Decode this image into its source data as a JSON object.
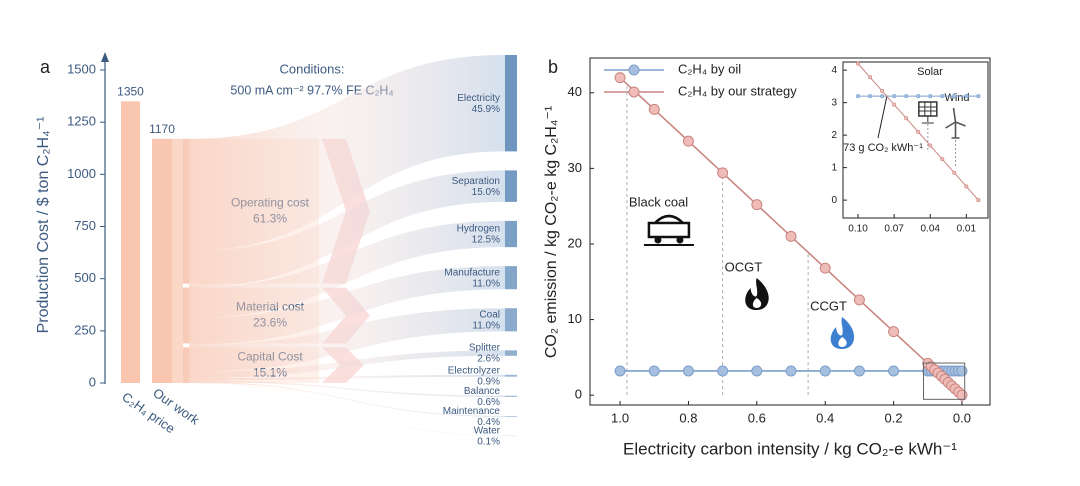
{
  "chart_data": [
    {
      "type": "sankey",
      "panel_label": "a",
      "ylabel": "Production Cost / $ ton C₂H₄⁻¹",
      "ylim": [
        0,
        1500
      ],
      "yticks": [
        0,
        250,
        500,
        750,
        1000,
        1250,
        1500
      ],
      "categories": [
        "C₂H₄ price",
        "Our work"
      ],
      "values": [
        1350,
        1170
      ],
      "color": "#f9c6b0",
      "conditions": [
        "Conditions:",
        "500 mA cm⁻²   97.7% FE C₂H₄"
      ],
      "groups": {
        "names": [
          "Operating cost",
          "Material cost",
          "Capital Cost"
        ],
        "values": [
          61.3,
          23.6,
          15.1
        ],
        "value_labels": [
          "61.3%",
          "23.6%",
          "15.1%"
        ],
        "color": "#f8cbb8"
      },
      "items": {
        "names": [
          "Electricity",
          "Separation",
          "Hydrogen",
          "Manufacture",
          "Coal",
          "Splitter",
          "Electrolyzer",
          "Balance",
          "Maintenance",
          "Water"
        ],
        "values": [
          45.9,
          15.0,
          12.5,
          11.0,
          11.0,
          2.6,
          0.9,
          0.6,
          0.4,
          0.1
        ],
        "value_labels": [
          "45.9%",
          "15.0%",
          "12.5%",
          "11.0%",
          "11.0%",
          "2.6%",
          "0.9%",
          "0.6%",
          "0.4%",
          "0.1%"
        ],
        "color": "#6f96bf"
      }
    },
    {
      "type": "line",
      "panel_label": "b",
      "xlabel": "Electricity carbon intensity / kg CO₂-e kWh⁻¹",
      "ylabel": "CO₂ emission / kg CO₂-e kg C₂H₄⁻¹",
      "x": [
        1.0,
        0.9,
        0.8,
        0.7,
        0.6,
        0.5,
        0.4,
        0.3,
        0.2,
        0.1,
        0.09,
        0.08,
        0.07,
        0.06,
        0.05,
        0.04,
        0.03,
        0.02,
        0.01,
        0.0
      ],
      "xlim": [
        1.088,
        -0.082
      ],
      "ylim": [
        -1.3,
        44.6
      ],
      "xticks": [
        {
          "value": 1,
          "label": "1.0"
        },
        0.8,
        0.6,
        0.4,
        0.2,
        {
          "value": 0,
          "label": "0.0"
        }
      ],
      "yticks": [
        0,
        10,
        20,
        30,
        40
      ],
      "legend": "upper left",
      "series": [
        {
          "name": "C₂H₄ by oil",
          "color": "#7b9fcb",
          "values": [
            3.2,
            3.2,
            3.2,
            3.2,
            3.2,
            3.2,
            3.2,
            3.2,
            3.2,
            3.2,
            3.2,
            3.2,
            3.2,
            3.2,
            3.2,
            3.2,
            3.2,
            3.2,
            3.2,
            3.2
          ]
        },
        {
          "name": "C₂H₄ by our strategy",
          "color": "#c98580",
          "values": [
            42,
            37.8,
            33.6,
            29.4,
            25.2,
            21,
            16.8,
            12.6,
            8.4,
            4.2,
            3.78,
            3.36,
            2.94,
            2.52,
            2.1,
            1.68,
            1.26,
            0.84,
            0.42,
            0
          ]
        }
      ],
      "annotations": [
        {
          "text": "Black coal",
          "x": 0.98
        },
        {
          "text": "OCGT",
          "x": 0.7
        },
        {
          "text": "CCGT",
          "x": 0.45
        }
      ]
    },
    {
      "type": "line",
      "x": [
        0.1,
        0.09,
        0.08,
        0.07,
        0.06,
        0.05,
        0.04,
        0.03,
        0.02,
        0.01,
        0.0
      ],
      "xlim": [
        0.1125,
        -0.008
      ],
      "ylim": [
        -0.55,
        4.25
      ],
      "xticks": [
        {
          "value": 0.1,
          "label": "0.10"
        },
        0.07,
        0.04,
        0.01
      ],
      "yticks": [
        0,
        1,
        2,
        3,
        4
      ],
      "series": [
        {
          "color": "#7b9fcb",
          "values": [
            3.2,
            3.2,
            3.2,
            3.2,
            3.2,
            3.2,
            3.2,
            3.2,
            3.2,
            3.2,
            3.2
          ]
        },
        {
          "color": "#c98580",
          "values": [
            4.2,
            3.78,
            3.36,
            2.94,
            2.52,
            2.1,
            1.68,
            1.26,
            0.84,
            0.42,
            0
          ]
        }
      ],
      "annotations": [
        {
          "text": "Solar",
          "x": 0.042
        },
        {
          "text": "Wind",
          "x": 0.019
        },
        {
          "text": "73 g CO₂ kWh⁻¹",
          "x": 0.076
        }
      ]
    }
  ]
}
